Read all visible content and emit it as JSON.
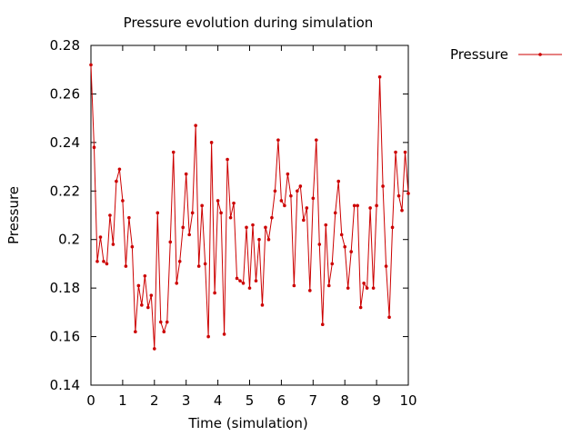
{
  "chart_data": {
    "type": "line",
    "title": "Pressure evolution during simulation",
    "xlabel": "Time (simulation)",
    "ylabel": "Pressure",
    "xlim": [
      0,
      10
    ],
    "ylim": [
      0.14,
      0.28
    ],
    "xticks": [
      "0",
      "1",
      "2",
      "3",
      "4",
      "5",
      "6",
      "7",
      "8",
      "9",
      "10"
    ],
    "yticks": [
      "0.14",
      "0.16",
      "0.18",
      "0.2",
      "0.22",
      "0.24",
      "0.26",
      "0.28"
    ],
    "grid": false,
    "legend_position": "right",
    "series": [
      {
        "name": "Pressure",
        "color": "#cc0000",
        "x": [
          0.0,
          0.1,
          0.2,
          0.3,
          0.4,
          0.5,
          0.6,
          0.7,
          0.8,
          0.9,
          1.0,
          1.1,
          1.2,
          1.3,
          1.4,
          1.5,
          1.6,
          1.7,
          1.8,
          1.9,
          2.0,
          2.1,
          2.2,
          2.3,
          2.4,
          2.5,
          2.6,
          2.7,
          2.8,
          2.9,
          3.0,
          3.1,
          3.2,
          3.3,
          3.4,
          3.5,
          3.6,
          3.7,
          3.8,
          3.9,
          4.0,
          4.1,
          4.2,
          4.3,
          4.4,
          4.5,
          4.6,
          4.7,
          4.8,
          4.9,
          5.0,
          5.1,
          5.2,
          5.3,
          5.4,
          5.5,
          5.6,
          5.7,
          5.8,
          5.9,
          6.0,
          6.1,
          6.2,
          6.3,
          6.4,
          6.5,
          6.6,
          6.7,
          6.8,
          6.9,
          7.0,
          7.1,
          7.2,
          7.3,
          7.4,
          7.5,
          7.6,
          7.7,
          7.8,
          7.9,
          8.0,
          8.1,
          8.2,
          8.3,
          8.4,
          8.5,
          8.6,
          8.7,
          8.8,
          8.9,
          9.0,
          9.1,
          9.2,
          9.3,
          9.4,
          9.5,
          9.6,
          9.7,
          9.8,
          9.9,
          10.0
        ],
        "values": [
          0.272,
          0.238,
          0.191,
          0.201,
          0.191,
          0.19,
          0.21,
          0.198,
          0.224,
          0.229,
          0.216,
          0.189,
          0.209,
          0.197,
          0.162,
          0.181,
          0.173,
          0.185,
          0.172,
          0.177,
          0.155,
          0.211,
          0.166,
          0.162,
          0.166,
          0.199,
          0.236,
          0.182,
          0.191,
          0.205,
          0.227,
          0.202,
          0.211,
          0.247,
          0.189,
          0.214,
          0.19,
          0.16,
          0.24,
          0.178,
          0.216,
          0.211,
          0.161,
          0.233,
          0.209,
          0.215,
          0.184,
          0.183,
          0.182,
          0.205,
          0.18,
          0.206,
          0.183,
          0.2,
          0.173,
          0.205,
          0.2,
          0.209,
          0.22,
          0.241,
          0.216,
          0.214,
          0.227,
          0.218,
          0.181,
          0.22,
          0.222,
          0.208,
          0.213,
          0.179,
          0.217,
          0.241,
          0.198,
          0.165,
          0.206,
          0.181,
          0.19,
          0.211,
          0.224,
          0.202,
          0.197,
          0.18,
          0.195,
          0.214,
          0.214,
          0.172,
          0.182,
          0.18,
          0.213,
          0.18,
          0.214,
          0.267,
          0.222,
          0.189,
          0.168,
          0.205,
          0.236,
          0.218,
          0.212,
          0.236,
          0.219
        ]
      }
    ]
  }
}
